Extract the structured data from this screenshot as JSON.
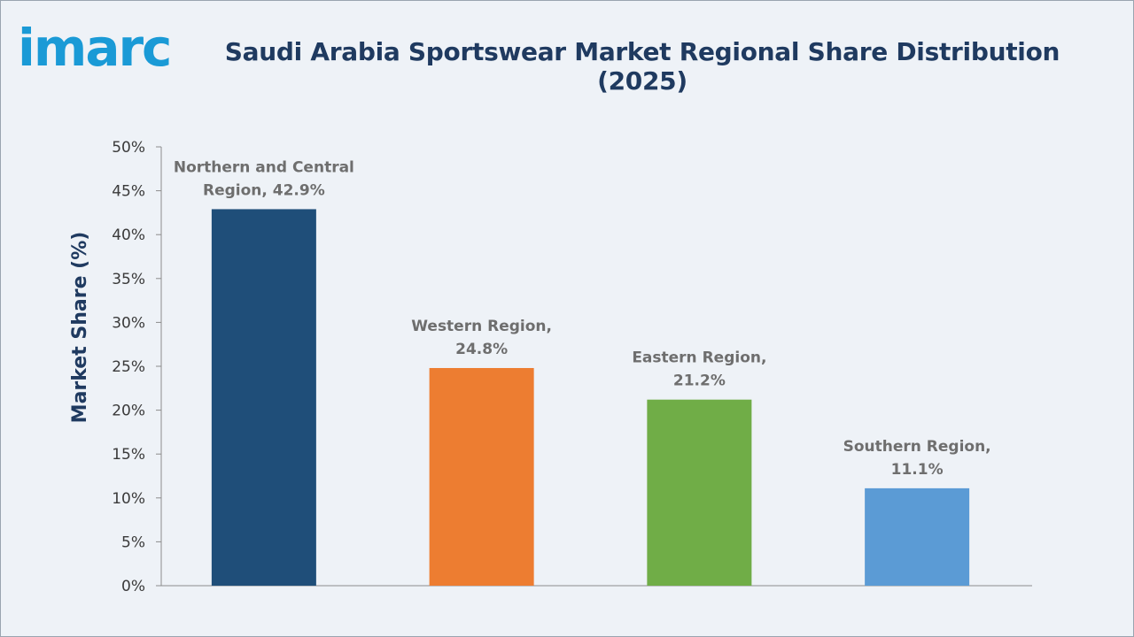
{
  "brand": {
    "name": "imarc",
    "color": "#1a9ad6"
  },
  "chart_data": {
    "type": "bar",
    "title": "Saudi Arabia Sportswear Market Regional Share Distribution (2025)",
    "xlabel": "",
    "ylabel": "Market Share (%)",
    "ylim": [
      0,
      50
    ],
    "yticks": [
      "0%",
      "5%",
      "10%",
      "15%",
      "20%",
      "25%",
      "30%",
      "35%",
      "40%",
      "45%",
      "50%"
    ],
    "categories": [
      "Northern and Central Region",
      "Western Region",
      "Eastern Region",
      "Southern Region"
    ],
    "values": [
      42.9,
      24.8,
      21.2,
      11.1
    ],
    "data_labels": [
      [
        "Northern and Central",
        "Region, 42.9%"
      ],
      [
        "Western Region,",
        "24.8%"
      ],
      [
        "Eastern Region,",
        "21.2%"
      ],
      [
        "Southern Region,",
        "11.1%"
      ]
    ],
    "colors": [
      "#1f4e79",
      "#ed7d31",
      "#70ad47",
      "#5b9bd5"
    ],
    "grid": false,
    "legend": "none"
  }
}
